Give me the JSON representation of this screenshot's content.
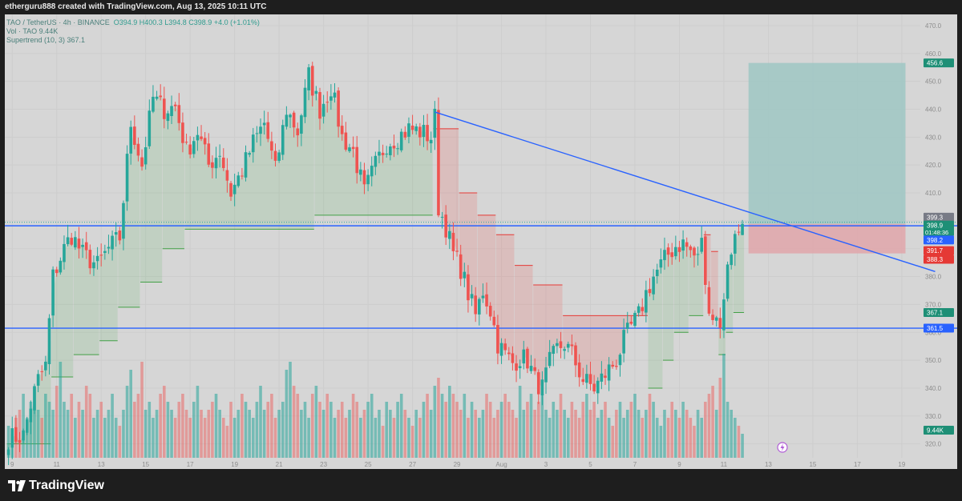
{
  "header": {
    "caption": "etherguru888 created with TradingView.com, Aug 13, 2025 10:11 UTC"
  },
  "legend": {
    "symbol": "TAO / TetherUS · 4h · BINANCE",
    "ohlc": "O394.9  H400.3  L394.8  C398.9  +4.0 (+1.01%)",
    "volume": "Vol · TAO  9.44K",
    "indicator": "Supertrend (10, 3)  367.1"
  },
  "footer": {
    "brand": "TradingView"
  },
  "colors": {
    "bull": "#26a69a",
    "bear": "#ef5350",
    "trendline": "#2962ff",
    "target_zone": "#9fc7c3",
    "stop_zone": "#e0a9ad"
  },
  "chart_data": {
    "type": "candlestick",
    "symbol": "TAOUSDT",
    "interval": "4h",
    "y_ticks": [
      320,
      330,
      340,
      350,
      360,
      370,
      380,
      390,
      400,
      410,
      420,
      430,
      440,
      450,
      460,
      470
    ],
    "ylim": [
      311,
      474
    ],
    "x_ticks": [
      {
        "label": "9",
        "i": 1
      },
      {
        "label": "11",
        "i": 13
      },
      {
        "label": "13",
        "i": 25
      },
      {
        "label": "15",
        "i": 37
      },
      {
        "label": "17",
        "i": 49
      },
      {
        "label": "19",
        "i": 61
      },
      {
        "label": "21",
        "i": 73
      },
      {
        "label": "23",
        "i": 85
      },
      {
        "label": "25",
        "i": 97
      },
      {
        "label": "27",
        "i": 109
      },
      {
        "label": "29",
        "i": 121
      },
      {
        "label": "Aug",
        "i": 133
      },
      {
        "label": "3",
        "i": 145
      },
      {
        "label": "5",
        "i": 157
      },
      {
        "label": "7",
        "i": 169
      },
      {
        "label": "9",
        "i": 181
      },
      {
        "label": "11",
        "i": 193
      },
      {
        "label": "13",
        "i": 205
      },
      {
        "label": "15",
        "i": 217
      },
      {
        "label": "17",
        "i": 229
      },
      {
        "label": "19",
        "i": 241
      }
    ],
    "x_range": [
      -1,
      246
    ],
    "anchors": [
      [
        0,
        322
      ],
      [
        4,
        323
      ],
      [
        6,
        334
      ],
      [
        8,
        343
      ],
      [
        10,
        348
      ],
      [
        12,
        380
      ],
      [
        15,
        390
      ],
      [
        17,
        395
      ],
      [
        20,
        388
      ],
      [
        24,
        384
      ],
      [
        27,
        390
      ],
      [
        30,
        394
      ],
      [
        33,
        435
      ],
      [
        36,
        420
      ],
      [
        39,
        444
      ],
      [
        42,
        440
      ],
      [
        45,
        441
      ],
      [
        48,
        425
      ],
      [
        51,
        432
      ],
      [
        54,
        420
      ],
      [
        57,
        425
      ],
      [
        60,
        410
      ],
      [
        63,
        418
      ],
      [
        66,
        428
      ],
      [
        69,
        435
      ],
      [
        72,
        418
      ],
      [
        75,
        440
      ],
      [
        78,
        432
      ],
      [
        81,
        452
      ],
      [
        84,
        440
      ],
      [
        87,
        448
      ],
      [
        90,
        430
      ],
      [
        93,
        425
      ],
      [
        96,
        410
      ],
      [
        99,
        420
      ],
      [
        102,
        428
      ],
      [
        105,
        430
      ],
      [
        108,
        433
      ],
      [
        111,
        432
      ],
      [
        114,
        430
      ],
      [
        115,
        437
      ],
      [
        116,
        405
      ],
      [
        118,
        398
      ],
      [
        120,
        388
      ],
      [
        122,
        383
      ],
      [
        124,
        374
      ],
      [
        126,
        366
      ],
      [
        128,
        375
      ],
      [
        130,
        368
      ],
      [
        132,
        356
      ],
      [
        134,
        352
      ],
      [
        136,
        349
      ],
      [
        138,
        351
      ],
      [
        140,
        350
      ],
      [
        142,
        343
      ],
      [
        144,
        340
      ],
      [
        146,
        349
      ],
      [
        148,
        354
      ],
      [
        150,
        356
      ],
      [
        152,
        352
      ],
      [
        155,
        343
      ],
      [
        158,
        340
      ],
      [
        161,
        345
      ],
      [
        164,
        350
      ],
      [
        166,
        357
      ],
      [
        168,
        362
      ],
      [
        170,
        366
      ],
      [
        172,
        374
      ],
      [
        174,
        380
      ],
      [
        176,
        384
      ],
      [
        178,
        388
      ],
      [
        180,
        391
      ],
      [
        182,
        392
      ],
      [
        184,
        389
      ],
      [
        186,
        386
      ],
      [
        187,
        395
      ],
      [
        188,
        375
      ],
      [
        190,
        366
      ],
      [
        192,
        364
      ],
      [
        193,
        370
      ],
      [
        194,
        386
      ],
      [
        196,
        394
      ],
      [
        198,
        398.9
      ]
    ],
    "volume_bars": [
      4,
      3,
      5,
      6,
      8,
      5,
      7,
      9,
      6,
      5,
      8,
      7,
      6,
      9,
      12,
      7,
      6,
      8,
      5,
      7,
      6,
      9,
      8,
      5,
      6,
      7,
      5,
      6,
      8,
      5,
      4,
      6,
      9,
      11,
      7,
      8,
      12,
      6,
      7,
      5,
      6,
      8,
      9,
      7,
      6,
      5,
      7,
      8,
      6,
      5,
      7,
      9,
      6,
      5,
      6,
      7,
      8,
      6,
      5,
      4,
      7,
      5,
      6,
      8,
      7,
      6,
      5,
      7,
      9,
      6,
      7,
      8,
      5,
      6,
      7,
      11,
      12,
      9,
      8,
      6,
      7,
      5,
      8,
      9,
      7,
      6,
      8,
      7,
      5,
      6,
      7,
      5,
      6,
      8,
      7,
      5,
      6,
      7,
      8,
      5,
      6,
      4,
      7,
      6,
      5,
      7,
      8,
      6,
      5,
      4,
      6,
      5,
      7,
      8,
      6,
      9,
      10,
      8,
      7,
      9,
      8,
      7,
      6,
      8,
      5,
      7,
      6,
      5,
      6,
      8,
      7,
      5,
      6,
      7,
      8,
      7,
      6,
      5,
      9,
      6,
      7,
      8,
      6,
      7,
      8,
      6,
      5,
      7,
      6,
      8,
      6,
      5,
      7,
      6,
      5,
      7,
      8,
      6,
      7,
      5,
      6,
      7,
      5,
      4,
      6,
      7,
      5,
      6,
      7,
      8,
      6,
      5,
      6,
      8,
      7,
      5,
      4,
      6,
      5,
      7,
      6,
      5,
      7,
      6,
      5,
      4,
      6,
      5,
      7,
      8,
      9,
      6,
      10,
      13,
      7,
      6,
      5,
      4,
      3
    ],
    "supertrend": [
      {
        "from": 0,
        "to": 12,
        "value": 320,
        "dir": "up"
      },
      {
        "from": 12,
        "to": 18,
        "value": 344,
        "dir": "up"
      },
      {
        "from": 18,
        "to": 25,
        "value": 352,
        "dir": "up"
      },
      {
        "from": 25,
        "to": 30,
        "value": 357,
        "dir": "up"
      },
      {
        "from": 30,
        "to": 36,
        "value": 369,
        "dir": "up"
      },
      {
        "from": 36,
        "to": 42,
        "value": 378,
        "dir": "up"
      },
      {
        "from": 42,
        "to": 48,
        "value": 390,
        "dir": "up"
      },
      {
        "from": 48,
        "to": 83,
        "value": 397,
        "dir": "up"
      },
      {
        "from": 83,
        "to": 115,
        "value": 402,
        "dir": "up"
      },
      {
        "from": 115,
        "to": 122,
        "value": 433,
        "dir": "down"
      },
      {
        "from": 122,
        "to": 127,
        "value": 410,
        "dir": "down"
      },
      {
        "from": 127,
        "to": 132,
        "value": 402,
        "dir": "down"
      },
      {
        "from": 132,
        "to": 137,
        "value": 395,
        "dir": "down"
      },
      {
        "from": 137,
        "to": 142,
        "value": 384,
        "dir": "down"
      },
      {
        "from": 142,
        "to": 150,
        "value": 377,
        "dir": "down"
      },
      {
        "from": 150,
        "to": 173,
        "value": 366,
        "dir": "down"
      },
      {
        "from": 173,
        "to": 177,
        "value": 340,
        "dir": "up"
      },
      {
        "from": 177,
        "to": 180,
        "value": 350,
        "dir": "up"
      },
      {
        "from": 180,
        "to": 184,
        "value": 360,
        "dir": "up"
      },
      {
        "from": 184,
        "to": 188,
        "value": 366,
        "dir": "up"
      },
      {
        "from": 188,
        "to": 190,
        "value": 395,
        "dir": "down"
      },
      {
        "from": 190,
        "to": 192,
        "value": 389,
        "dir": "down"
      },
      {
        "from": 192,
        "to": 194,
        "value": 352,
        "dir": "up"
      },
      {
        "from": 194,
        "to": 196,
        "value": 360,
        "dir": "up"
      },
      {
        "from": 196,
        "to": 199,
        "value": 367.1,
        "dir": "up"
      }
    ],
    "horizontal_lines": [
      398.2,
      361.5
    ],
    "trendline": {
      "from": {
        "i": 115,
        "y": 439
      },
      "to": {
        "i": 250,
        "y": 381.8
      }
    },
    "position": {
      "from": 199,
      "to": 242,
      "entry": 398.9,
      "target": 456.6,
      "stop": 388.3
    },
    "price_labels": [
      {
        "text": "456.6",
        "y": 456.6,
        "color": "#1e8f76"
      },
      {
        "text": "399.3",
        "y": 401.3,
        "color": "#787b86"
      },
      {
        "text": "398.9",
        "sub": "01:48:36",
        "y": 397.3,
        "color": "#1e8f76"
      },
      {
        "text": "398.2",
        "y": 393.1,
        "color": "#2962ff"
      },
      {
        "text": "391.7",
        "y": 389.3,
        "color": "#e53935"
      },
      {
        "text": "388.3",
        "y": 386.2,
        "color": "#e53935"
      },
      {
        "text": "367.1",
        "y": 367.1,
        "color": "#1e8f76"
      },
      {
        "text": "361.5",
        "y": 361.5,
        "color": "#2962ff"
      }
    ],
    "volume_label": "9.44K"
  }
}
